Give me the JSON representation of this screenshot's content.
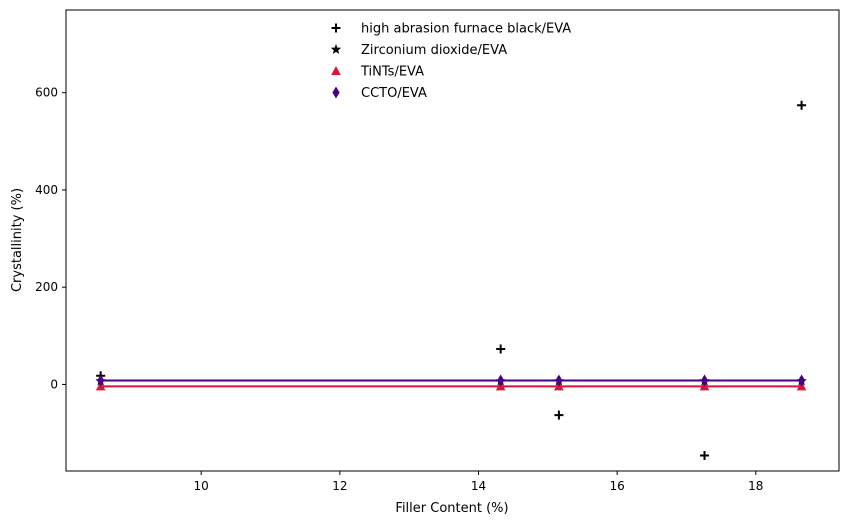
{
  "chart_data": {
    "type": "scatter",
    "title": "",
    "xlabel": "Filler Content (%)",
    "ylabel": "Crystallinity (%)",
    "xlim": [
      8.05,
      19.2
    ],
    "ylim": [
      -178,
      770
    ],
    "x_ticks": [
      10,
      12,
      14,
      16,
      18
    ],
    "y_ticks": [
      0,
      200,
      400,
      600
    ],
    "grid": false,
    "legend_position": "top-center",
    "series": [
      {
        "name": "high abrasion furnace black/EVA",
        "marker": "plus",
        "color": "#000000",
        "line": false,
        "points": [
          {
            "x": 8.55,
            "y": 18
          },
          {
            "x": 14.32,
            "y": 73
          },
          {
            "x": 15.16,
            "y": -63
          },
          {
            "x": 17.26,
            "y": -146
          },
          {
            "x": 18.66,
            "y": 574
          }
        ]
      },
      {
        "name": "Zirconium dioxide/EVA",
        "marker": "star",
        "color": "#000000",
        "line": false,
        "points": [
          {
            "x": 8.55,
            "y": 7
          },
          {
            "x": 14.32,
            "y": 7
          },
          {
            "x": 15.16,
            "y": 7
          },
          {
            "x": 17.26,
            "y": 7
          },
          {
            "x": 18.66,
            "y": 7
          }
        ]
      },
      {
        "name": "TiNTs/EVA",
        "marker": "triangle",
        "color": "#dc143c",
        "line": true,
        "points": [
          {
            "x": 8.55,
            "y": -4
          },
          {
            "x": 14.32,
            "y": -4
          },
          {
            "x": 15.16,
            "y": -4
          },
          {
            "x": 17.26,
            "y": -4
          },
          {
            "x": 18.66,
            "y": -4
          }
        ]
      },
      {
        "name": "CCTO/EVA",
        "marker": "diamond",
        "color": "#4b0082",
        "line": true,
        "points": [
          {
            "x": 8.55,
            "y": 8
          },
          {
            "x": 14.32,
            "y": 8
          },
          {
            "x": 15.16,
            "y": 8
          },
          {
            "x": 17.26,
            "y": 8
          },
          {
            "x": 18.66,
            "y": 8
          }
        ]
      }
    ]
  }
}
